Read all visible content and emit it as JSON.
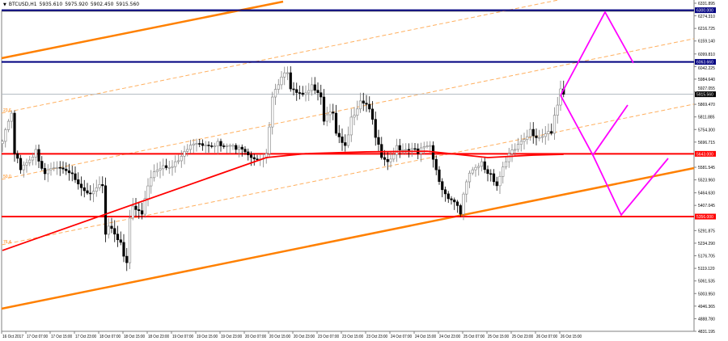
{
  "header": {
    "symbol": "BTCUSD,H1",
    "open": "5935.610",
    "high": "5975.920",
    "low": "5902.450",
    "close": "5915.560",
    "menu_icon": "triangle-down-icon"
  },
  "chart_data": {
    "type": "candlestick",
    "title": "",
    "ylim": [
      4831.195,
      6331.895
    ],
    "grid": false,
    "y_ticks": [
      "6331.895",
      "6274.310",
      "6216.725",
      "6159.140",
      "6099.810",
      "6042.225",
      "5984.640",
      "5927.055",
      "5869.470",
      "5811.885",
      "5754.300",
      "5696.715",
      "5581.545",
      "5523.960",
      "5464.630",
      "5407.045",
      "5291.875",
      "5234.290",
      "5176.705",
      "5119.120",
      "5061.535",
      "5003.950",
      "4946.365",
      "4888.780",
      "4831.195"
    ],
    "x_ticks": [
      "16 Oct 2017",
      "17 Oct 07:00",
      "17 Oct 15:00",
      "17 Oct 23:00",
      "18 Oct 07:00",
      "18 Oct 15:00",
      "18 Oct 23:00",
      "19 Oct 07:00",
      "19 Oct 15:00",
      "19 Oct 23:00",
      "20 Oct 07:00",
      "20 Oct 15:00",
      "20 Oct 23:00",
      "23 Oct 07:00",
      "23 Oct 15:00",
      "23 Oct 23:00",
      "24 Oct 07:00",
      "24 Oct 15:00",
      "24 Oct 23:00",
      "25 Oct 07:00",
      "25 Oct 15:00",
      "25 Oct 23:00",
      "26 Oct 07:00",
      "26 Oct 15:00"
    ],
    "bars_per_tick": 8,
    "close_path": [
      [
        0,
        5700
      ],
      [
        2,
        5792
      ],
      [
        3,
        5829
      ],
      [
        4,
        5644
      ],
      [
        6,
        5570
      ],
      [
        11,
        5663
      ],
      [
        14,
        5552
      ],
      [
        15,
        5570
      ],
      [
        23,
        5552
      ],
      [
        29,
        5460
      ],
      [
        33,
        5497
      ],
      [
        34,
        5275
      ],
      [
        35,
        5312
      ],
      [
        39,
        5238
      ],
      [
        41,
        5145
      ],
      [
        42,
        5349
      ],
      [
        43,
        5404
      ],
      [
        46,
        5367
      ],
      [
        49,
        5534
      ],
      [
        53,
        5589
      ],
      [
        57,
        5607
      ],
      [
        61,
        5663
      ],
      [
        66,
        5681
      ],
      [
        71,
        5700
      ],
      [
        77,
        5663
      ],
      [
        82,
        5626
      ],
      [
        87,
        5644
      ],
      [
        89,
        5903
      ],
      [
        91,
        5959
      ],
      [
        94,
        6014
      ],
      [
        95,
        5940
      ],
      [
        98,
        5921
      ],
      [
        102,
        5959
      ],
      [
        105,
        5903
      ],
      [
        106,
        5792
      ],
      [
        109,
        5829
      ],
      [
        110,
        5737
      ],
      [
        113,
        5681
      ],
      [
        115,
        5811
      ],
      [
        118,
        5885
      ],
      [
        121,
        5848
      ],
      [
        123,
        5718
      ],
      [
        125,
        5626
      ],
      [
        127,
        5607
      ],
      [
        130,
        5681
      ],
      [
        134,
        5663
      ],
      [
        137,
        5644
      ],
      [
        141,
        5681
      ],
      [
        143,
        5570
      ],
      [
        146,
        5460
      ],
      [
        149,
        5423
      ],
      [
        151,
        5367
      ],
      [
        153,
        5515
      ],
      [
        155,
        5570
      ],
      [
        158,
        5607
      ],
      [
        161,
        5552
      ],
      [
        163,
        5497
      ],
      [
        166,
        5607
      ],
      [
        169,
        5663
      ],
      [
        171,
        5700
      ],
      [
        174,
        5755
      ],
      [
        177,
        5718
      ],
      [
        181,
        5737
      ],
      [
        183,
        5866
      ],
      [
        184,
        5940
      ],
      [
        185,
        5915.56
      ]
    ],
    "moving_average": [
      [
        0,
        5201
      ],
      [
        34,
        5367
      ],
      [
        87,
        5626
      ],
      [
        100,
        5644
      ],
      [
        120,
        5652
      ],
      [
        140,
        5655
      ],
      [
        160,
        5626
      ],
      [
        175,
        5637
      ],
      [
        185,
        5641
      ]
    ],
    "horizontal_levels": [
      {
        "price": 6300.0,
        "label": "6300.000",
        "color": "#000080"
      },
      {
        "price": 6063.66,
        "label": "6063.660",
        "color": "#000080"
      },
      {
        "price": 5915.56,
        "label": "5915.560",
        "color": "#000000",
        "line": "#b0b8c0"
      },
      {
        "price": 5643.0,
        "label": "5643.000",
        "color": "#ff0000"
      },
      {
        "price": 5356.0,
        "label": "5356.000",
        "color": "#ff0000"
      }
    ],
    "fib_labels": [
      "23.6",
      "50.0",
      "76.4"
    ],
    "colors": {
      "trend": "#ff8000",
      "ma": "#ff0000",
      "projection": "#ff00ff",
      "bull": "#ffffff",
      "bear": "#000000"
    }
  }
}
